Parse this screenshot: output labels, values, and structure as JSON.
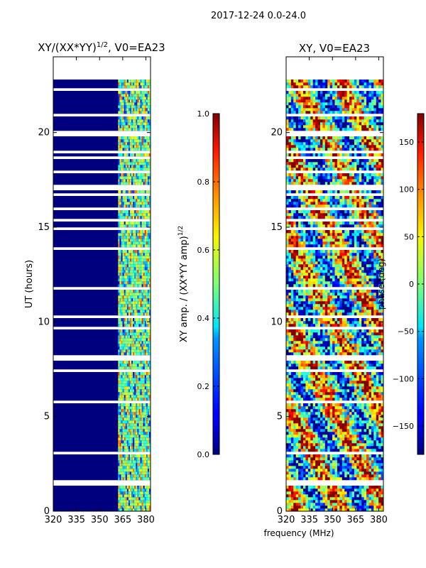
{
  "suptitle": "2017-12-24 0.0-24.0",
  "chart_data": [
    {
      "type": "heatmap",
      "title": "XY/(XX*YY)^(1/2), V0=EA23",
      "title_main": "XY/(XX*YY)",
      "title_exp": "1/2",
      "title_tail": ", V0=EA23",
      "xlabel": "",
      "ylabel": "UT (hours)",
      "xlim": [
        320,
        383
      ],
      "ylim": [
        0,
        24
      ],
      "xticks": [
        320,
        335,
        350,
        365,
        380
      ],
      "yticks": [
        0,
        5,
        10,
        15,
        20
      ],
      "colorbar": {
        "label": "XY amp. / (XX*YY amp)^(1/2)",
        "label_main": "XY amp. / (XX*YY amp)",
        "label_exp": "1/2",
        "range": [
          0.0,
          1.0
        ],
        "ticks": [
          "0.0",
          "0.2",
          "0.4",
          "0.6",
          "0.8",
          "1.0"
        ],
        "colormap": "jet"
      }
    },
    {
      "type": "heatmap",
      "title": "XY, V0=EA23",
      "xlabel": "frequency (MHz)",
      "ylabel": "",
      "xlim": [
        320,
        383
      ],
      "ylim": [
        0,
        24
      ],
      "xticks": [
        320,
        335,
        350,
        365,
        380
      ],
      "yticks": [
        0,
        5,
        10,
        15,
        20
      ],
      "colorbar": {
        "label": "phase (deg)",
        "range": [
          -180,
          180
        ],
        "ticks": [
          "150",
          "100",
          "50",
          "0",
          "−50",
          "−100",
          "−150"
        ],
        "colormap": "jet"
      }
    }
  ]
}
